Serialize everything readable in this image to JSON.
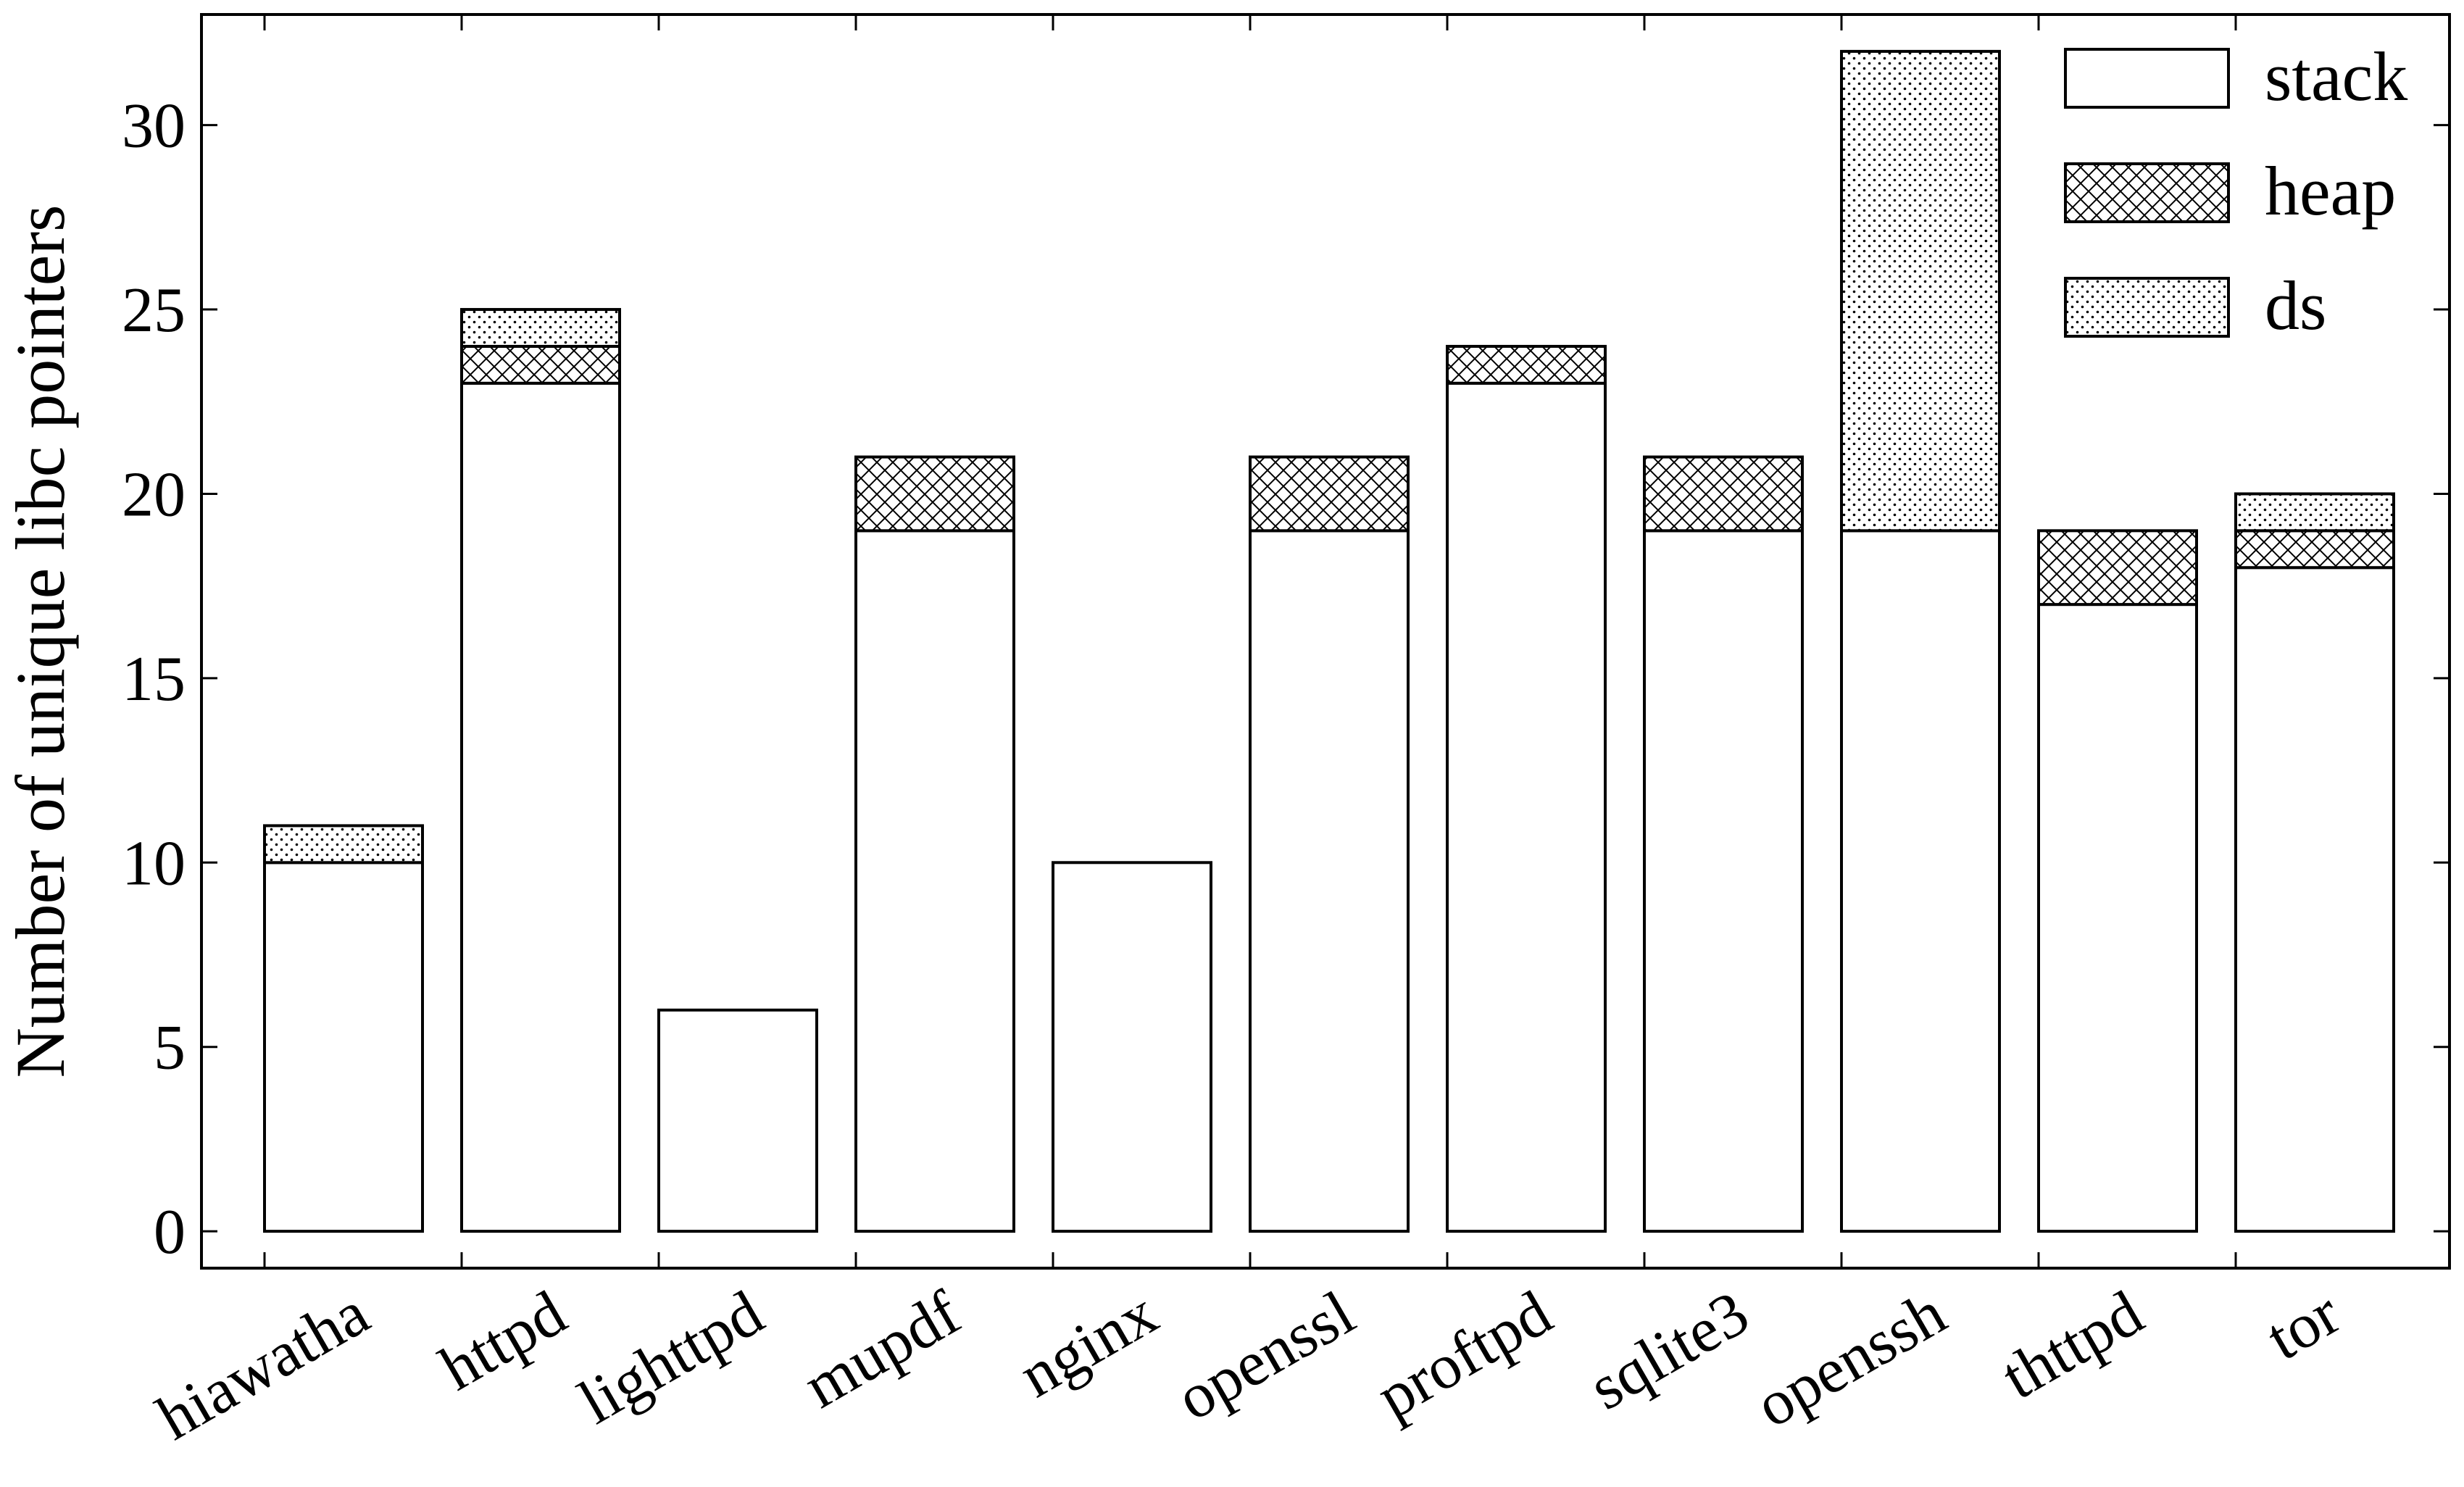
{
  "chart_data": {
    "type": "bar",
    "stacked": true,
    "categories": [
      "hiawatha",
      "httpd",
      "lighttpd",
      "mupdf",
      "nginx",
      "openssl",
      "proftpd",
      "sqlite3",
      "openssh",
      "thttpd",
      "tor"
    ],
    "series": [
      {
        "name": "stack",
        "pattern": "none",
        "values": [
          10,
          23,
          6,
          19,
          10,
          19,
          23,
          19,
          19,
          17,
          18
        ]
      },
      {
        "name": "heap",
        "pattern": "cross",
        "values": [
          0,
          1,
          0,
          2,
          0,
          2,
          1,
          2,
          0,
          2,
          1
        ]
      },
      {
        "name": "ds",
        "pattern": "dots",
        "values": [
          1,
          1,
          0,
          0,
          0,
          0,
          0,
          0,
          13,
          0,
          1
        ]
      }
    ],
    "title": "",
    "xlabel": "",
    "ylabel": "Number of unique libc pointers",
    "ylim": [
      -1,
      33
    ],
    "yticks": [
      "0",
      "5",
      "10",
      "15",
      "20",
      "25",
      "30"
    ],
    "grid": false,
    "legend_position": "top-right",
    "colors": {
      "bar_fill": "#ffffff",
      "stroke": "#000000"
    }
  }
}
